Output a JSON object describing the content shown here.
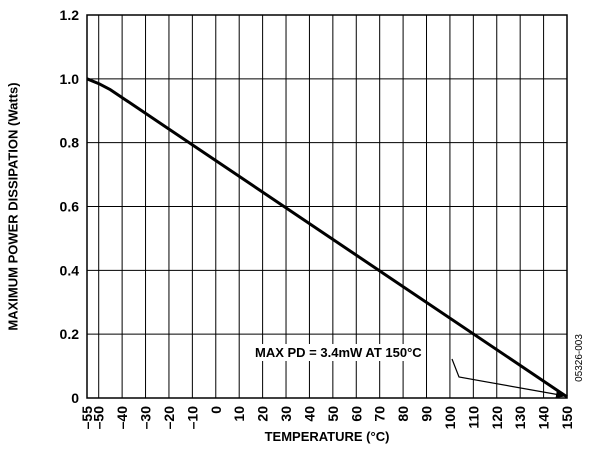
{
  "chart_data": {
    "type": "line",
    "title": "",
    "xlabel": "TEMPERATURE (°C)",
    "ylabel": "MAXIMUM POWER DISSIPATION (Watts)",
    "xlim": [
      -55,
      150
    ],
    "ylim": [
      0,
      1.2
    ],
    "x_ticks": [
      -55,
      -50,
      -40,
      -30,
      -20,
      -10,
      0,
      10,
      20,
      30,
      40,
      50,
      60,
      70,
      80,
      90,
      100,
      110,
      120,
      130,
      140,
      150
    ],
    "x_tick_labels": [
      "–55",
      "–50",
      "–40",
      "–30",
      "–20",
      "–10",
      "0",
      "10",
      "20",
      "30",
      "40",
      "50",
      "60",
      "70",
      "80",
      "90",
      "100",
      "110",
      "120",
      "130",
      "140",
      "150"
    ],
    "y_ticks": [
      0,
      0.2,
      0.4,
      0.6,
      0.8,
      1.0,
      1.2
    ],
    "y_tick_labels": [
      "0",
      "0.2",
      "0.4",
      "0.6",
      "0.8",
      "1.0",
      "1.2"
    ],
    "grid": true,
    "series": [
      {
        "x": [
          -55,
          -50,
          -45,
          150
        ],
        "y": [
          1.0,
          0.985,
          0.966,
          0.0034
        ]
      }
    ],
    "annotation": {
      "text": "MAX PD = 3.4mW AT 150°C",
      "target_x": 150,
      "target_y": 0.0034
    },
    "figure_id": "05326-003"
  }
}
